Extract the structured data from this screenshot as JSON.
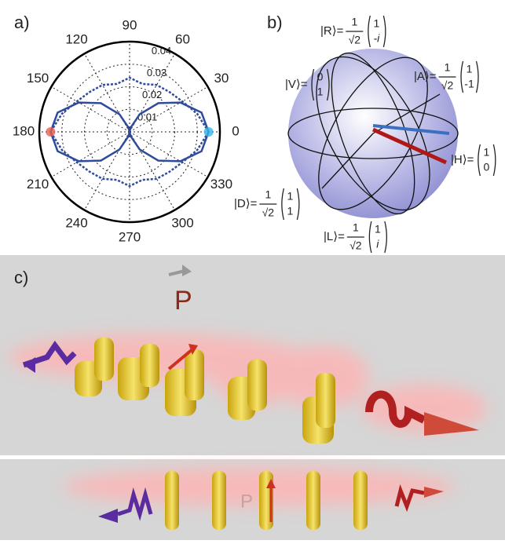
{
  "chart_data": {
    "type": "polar",
    "label": "a)",
    "theta": [
      0,
      15,
      30,
      45,
      60,
      75,
      90,
      105,
      120,
      135,
      150,
      165,
      180,
      195,
      210,
      225,
      240,
      255,
      270,
      285,
      300,
      315,
      330,
      345
    ],
    "series": [
      {
        "color": "#2f4b9c",
        "style": "solid",
        "values": [
          0.035,
          0.033,
          0.026,
          0.018,
          0.009,
          0.002,
          0,
          0.002,
          0.009,
          0.018,
          0.026,
          0.033,
          0.035,
          0.033,
          0.026,
          0.018,
          0.009,
          0.002,
          0,
          0.002,
          0.009,
          0.018,
          0.026,
          0.033
        ]
      },
      {
        "color": "#2f4b9c",
        "style": "dotted",
        "values": [
          0.035,
          0.031,
          0.027,
          0.025,
          0.024,
          0.022,
          0.024,
          0.022,
          0.024,
          0.025,
          0.027,
          0.031,
          0.035,
          0.031,
          0.027,
          0.025,
          0.024,
          0.022,
          0.024,
          0.022,
          0.024,
          0.025,
          0.027,
          0.031
        ]
      }
    ],
    "rlim": [
      0,
      0.04
    ],
    "rticks": [
      0.01,
      0.02,
      0.03,
      0.04
    ],
    "thetaticks": [
      0,
      30,
      60,
      90,
      120,
      150,
      180,
      210,
      240,
      270,
      300,
      330
    ],
    "grid": true
  },
  "bloch": {
    "label": "b)",
    "states": [
      {
        "ket": "|R⟩=",
        "num": "1",
        "den": "√2",
        "top": "1",
        "bottom": "-i"
      },
      {
        "ket": "|V⟩=",
        "top": "0",
        "bottom": "1"
      },
      {
        "ket": "|A⟩=",
        "num": "1",
        "den": "√2",
        "top": "1",
        "bottom": "-1"
      },
      {
        "ket": "|H⟩=",
        "top": "1",
        "bottom": "0"
      },
      {
        "ket": "|D⟩=",
        "num": "1",
        "den": "√2",
        "top": "1",
        "bottom": "1"
      },
      {
        "ket": "|L⟩=",
        "num": "1",
        "den": "√2",
        "top": "1",
        "bottom": "i"
      }
    ]
  },
  "illustration": {
    "label": "c)",
    "momentum_top": "P",
    "momentum_bottom": "P"
  }
}
